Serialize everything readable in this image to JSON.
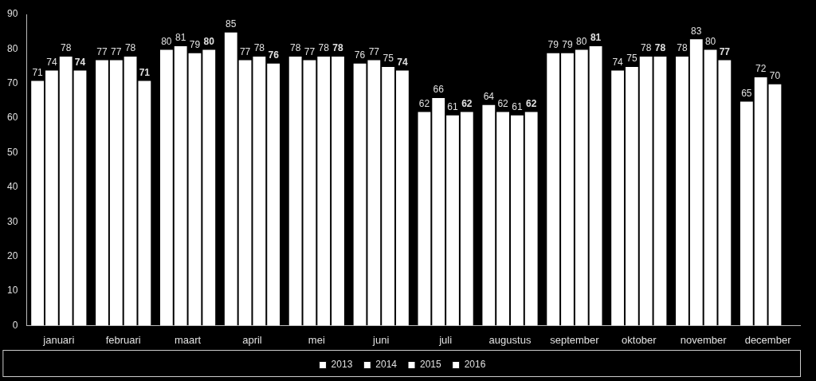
{
  "chart_data": {
    "type": "bar",
    "categories": [
      "januari",
      "februari",
      "maart",
      "april",
      "mei",
      "juni",
      "juli",
      "augustus",
      "september",
      "oktober",
      "november",
      "december"
    ],
    "series": [
      {
        "name": "2013",
        "color": "#ffffff",
        "values": [
          71,
          77,
          80,
          85,
          78,
          76,
          62,
          64,
          79,
          74,
          78,
          65
        ]
      },
      {
        "name": "2014",
        "color": "#ffffff",
        "values": [
          74,
          77,
          81,
          77,
          77,
          77,
          66,
          62,
          79,
          75,
          83,
          72
        ]
      },
      {
        "name": "2015",
        "color": "#ffffff",
        "values": [
          78,
          78,
          79,
          78,
          78,
          75,
          61,
          61,
          80,
          78,
          80,
          70
        ]
      },
      {
        "name": "2016",
        "color": "#ffffff",
        "values": [
          74,
          71,
          80,
          76,
          78,
          74,
          62,
          62,
          81,
          78,
          77,
          null
        ]
      }
    ],
    "ylim": [
      0,
      90
    ],
    "yticks": [
      0,
      10,
      20,
      30,
      40,
      50,
      60,
      70,
      80,
      90
    ],
    "grid": false,
    "legend": "bottom",
    "data_labels": true
  }
}
